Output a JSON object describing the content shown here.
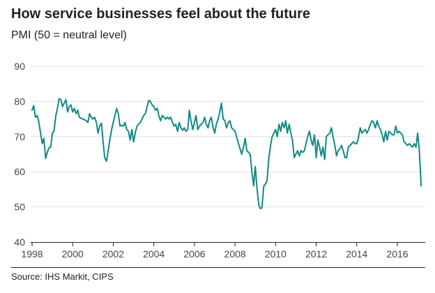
{
  "header": {
    "title": "How service businesses feel about the future",
    "subtitle": "PMI (50 = neutral level)"
  },
  "footer": {
    "source": "Source: IHS Markit, CIPS"
  },
  "colors": {
    "line": "#0f8a84",
    "grid": "#dddddd",
    "axis": "#222222",
    "text": "#444444"
  },
  "chart_data": {
    "type": "line",
    "title": "How service businesses feel about the future",
    "subtitle": "PMI (50 = neutral level)",
    "xlabel": "",
    "ylabel": "",
    "xlim": [
      1998,
      2016.9
    ],
    "ylim": [
      40,
      90
    ],
    "x_ticks": [
      1998,
      2000,
      2002,
      2004,
      2006,
      2008,
      2010,
      2012,
      2014,
      2016
    ],
    "y_ticks": [
      40,
      50,
      60,
      70,
      80,
      90
    ],
    "grid": true,
    "legend": "none",
    "series": [
      {
        "color": "#0f8a84",
        "points": [
          [
            1998.0,
            77.5
          ],
          [
            1998.08,
            78.8
          ],
          [
            1998.17,
            75.5
          ],
          [
            1998.25,
            76.0
          ],
          [
            1998.33,
            74.2
          ],
          [
            1998.42,
            71.0
          ],
          [
            1998.5,
            68.0
          ],
          [
            1998.58,
            69.5
          ],
          [
            1998.67,
            63.8
          ],
          [
            1998.75,
            65.5
          ],
          [
            1998.83,
            66.8
          ],
          [
            1998.92,
            67.0
          ],
          [
            1999.0,
            71.0
          ],
          [
            1999.08,
            71.5
          ],
          [
            1999.17,
            76.0
          ],
          [
            1999.25,
            78.0
          ],
          [
            1999.33,
            80.8
          ],
          [
            1999.42,
            80.5
          ],
          [
            1999.5,
            78.5
          ],
          [
            1999.58,
            79.5
          ],
          [
            1999.67,
            80.5
          ],
          [
            1999.75,
            77.0
          ],
          [
            1999.83,
            78.5
          ],
          [
            1999.92,
            79.0
          ],
          [
            2000.0,
            77.0
          ],
          [
            2000.08,
            78.0
          ],
          [
            2000.17,
            76.5
          ],
          [
            2000.25,
            77.5
          ],
          [
            2000.33,
            75.5
          ],
          [
            2000.42,
            75.2
          ],
          [
            2000.5,
            75.0
          ],
          [
            2000.58,
            74.8
          ],
          [
            2000.67,
            74.5
          ],
          [
            2000.75,
            74.0
          ],
          [
            2000.83,
            76.5
          ],
          [
            2000.92,
            75.5
          ],
          [
            2001.0,
            75.0
          ],
          [
            2001.08,
            75.5
          ],
          [
            2001.17,
            74.0
          ],
          [
            2001.25,
            71.0
          ],
          [
            2001.33,
            73.0
          ],
          [
            2001.42,
            73.8
          ],
          [
            2001.5,
            68.5
          ],
          [
            2001.58,
            64.0
          ],
          [
            2001.67,
            63.0
          ],
          [
            2001.75,
            66.0
          ],
          [
            2001.83,
            69.0
          ],
          [
            2001.92,
            72.0
          ],
          [
            2002.0,
            74.0
          ],
          [
            2002.08,
            76.0
          ],
          [
            2002.17,
            78.0
          ],
          [
            2002.25,
            76.5
          ],
          [
            2002.33,
            73.0
          ],
          [
            2002.42,
            73.2
          ],
          [
            2002.5,
            73.0
          ],
          [
            2002.58,
            74.0
          ],
          [
            2002.67,
            72.0
          ],
          [
            2002.75,
            71.5
          ],
          [
            2002.83,
            69.0
          ],
          [
            2002.92,
            72.0
          ],
          [
            2003.0,
            68.5
          ],
          [
            2003.08,
            71.0
          ],
          [
            2003.17,
            73.0
          ],
          [
            2003.25,
            73.5
          ],
          [
            2003.33,
            74.0
          ],
          [
            2003.42,
            75.0
          ],
          [
            2003.5,
            76.0
          ],
          [
            2003.58,
            76.5
          ],
          [
            2003.67,
            78.5
          ],
          [
            2003.75,
            80.3
          ],
          [
            2003.83,
            80.0
          ],
          [
            2003.92,
            79.0
          ],
          [
            2004.0,
            78.5
          ],
          [
            2004.08,
            77.5
          ],
          [
            2004.17,
            78.0
          ],
          [
            2004.25,
            76.0
          ],
          [
            2004.33,
            74.5
          ],
          [
            2004.42,
            76.0
          ],
          [
            2004.5,
            75.5
          ],
          [
            2004.58,
            75.0
          ],
          [
            2004.67,
            75.5
          ],
          [
            2004.75,
            75.0
          ],
          [
            2004.83,
            75.5
          ],
          [
            2004.92,
            74.0
          ],
          [
            2005.0,
            73.0
          ],
          [
            2005.08,
            73.5
          ],
          [
            2005.17,
            71.5
          ],
          [
            2005.25,
            74.0
          ],
          [
            2005.33,
            72.5
          ],
          [
            2005.42,
            71.8
          ],
          [
            2005.5,
            72.5
          ],
          [
            2005.58,
            71.5
          ],
          [
            2005.67,
            72.0
          ],
          [
            2005.75,
            77.5
          ],
          [
            2005.83,
            74.5
          ],
          [
            2005.92,
            72.0
          ],
          [
            2006.0,
            74.0
          ],
          [
            2006.08,
            76.0
          ],
          [
            2006.17,
            72.0
          ],
          [
            2006.25,
            73.0
          ],
          [
            2006.33,
            73.5
          ],
          [
            2006.42,
            74.0
          ],
          [
            2006.5,
            75.5
          ],
          [
            2006.58,
            73.5
          ],
          [
            2006.67,
            72.5
          ],
          [
            2006.75,
            74.5
          ],
          [
            2006.83,
            75.5
          ],
          [
            2006.92,
            72.5
          ],
          [
            2007.0,
            71.0
          ],
          [
            2007.08,
            73.5
          ],
          [
            2007.17,
            75.0
          ],
          [
            2007.25,
            77.0
          ],
          [
            2007.33,
            79.5
          ],
          [
            2007.42,
            75.0
          ],
          [
            2007.5,
            74.5
          ],
          [
            2007.58,
            72.5
          ],
          [
            2007.67,
            74.0
          ],
          [
            2007.75,
            74.5
          ],
          [
            2007.83,
            72.5
          ],
          [
            2007.92,
            72.0
          ],
          [
            2008.0,
            71.5
          ],
          [
            2008.08,
            70.0
          ],
          [
            2008.17,
            68.0
          ],
          [
            2008.25,
            66.5
          ],
          [
            2008.33,
            65.0
          ],
          [
            2008.42,
            67.0
          ],
          [
            2008.5,
            69.5
          ],
          [
            2008.58,
            66.0
          ],
          [
            2008.67,
            65.5
          ],
          [
            2008.75,
            65.0
          ],
          [
            2008.83,
            60.0
          ],
          [
            2008.92,
            56.0
          ],
          [
            2009.0,
            61.5
          ],
          [
            2009.08,
            55.5
          ],
          [
            2009.17,
            50.5
          ],
          [
            2009.25,
            49.5
          ],
          [
            2009.33,
            49.8
          ],
          [
            2009.42,
            56.0
          ],
          [
            2009.5,
            56.5
          ],
          [
            2009.58,
            57.5
          ],
          [
            2009.67,
            64.0
          ],
          [
            2009.75,
            67.5
          ],
          [
            2009.83,
            70.0
          ],
          [
            2009.92,
            71.0
          ],
          [
            2010.0,
            72.0
          ],
          [
            2010.08,
            70.0
          ],
          [
            2010.17,
            73.5
          ],
          [
            2010.25,
            71.5
          ],
          [
            2010.33,
            74.0
          ],
          [
            2010.42,
            72.5
          ],
          [
            2010.5,
            74.5
          ],
          [
            2010.58,
            71.0
          ],
          [
            2010.67,
            73.5
          ],
          [
            2010.75,
            71.0
          ],
          [
            2010.83,
            69.0
          ],
          [
            2010.92,
            64.0
          ],
          [
            2011.0,
            65.0
          ],
          [
            2011.08,
            66.0
          ],
          [
            2011.17,
            64.5
          ],
          [
            2011.25,
            66.0
          ],
          [
            2011.33,
            65.5
          ],
          [
            2011.42,
            66.0
          ],
          [
            2011.5,
            68.0
          ],
          [
            2011.58,
            70.0
          ],
          [
            2011.67,
            71.5
          ],
          [
            2011.75,
            69.0
          ],
          [
            2011.83,
            67.5
          ],
          [
            2011.92,
            70.5
          ],
          [
            2012.0,
            64.0
          ],
          [
            2012.08,
            69.0
          ],
          [
            2012.17,
            67.0
          ],
          [
            2012.25,
            64.5
          ],
          [
            2012.33,
            67.0
          ],
          [
            2012.42,
            63.5
          ],
          [
            2012.5,
            70.0
          ],
          [
            2012.58,
            70.5
          ],
          [
            2012.67,
            71.0
          ],
          [
            2012.75,
            72.5
          ],
          [
            2012.83,
            70.0
          ],
          [
            2012.92,
            67.5
          ],
          [
            2013.0,
            64.5
          ],
          [
            2013.08,
            66.0
          ],
          [
            2013.17,
            66.5
          ],
          [
            2013.25,
            67.5
          ],
          [
            2013.33,
            66.0
          ],
          [
            2013.42,
            64.0
          ],
          [
            2013.5,
            64.0
          ],
          [
            2013.58,
            67.0
          ],
          [
            2013.67,
            67.5
          ],
          [
            2013.75,
            68.0
          ],
          [
            2013.83,
            68.5
          ],
          [
            2013.92,
            68.0
          ],
          [
            2014.0,
            68.0
          ],
          [
            2014.08,
            69.5
          ],
          [
            2014.17,
            72.5
          ],
          [
            2014.25,
            71.0
          ],
          [
            2014.33,
            71.5
          ],
          [
            2014.42,
            72.0
          ],
          [
            2014.5,
            71.0
          ],
          [
            2014.58,
            72.0
          ],
          [
            2014.67,
            73.5
          ],
          [
            2014.75,
            74.5
          ],
          [
            2014.83,
            74.0
          ],
          [
            2014.92,
            72.5
          ],
          [
            2015.0,
            74.5
          ],
          [
            2015.08,
            73.0
          ],
          [
            2015.17,
            72.0
          ],
          [
            2015.25,
            70.5
          ],
          [
            2015.33,
            68.5
          ],
          [
            2015.42,
            71.5
          ],
          [
            2015.5,
            69.0
          ],
          [
            2015.58,
            71.5
          ],
          [
            2015.67,
            71.0
          ],
          [
            2015.75,
            70.5
          ],
          [
            2015.83,
            70.5
          ],
          [
            2015.92,
            73.0
          ],
          [
            2016.0,
            71.0
          ],
          [
            2016.08,
            71.5
          ],
          [
            2016.17,
            71.0
          ],
          [
            2016.25,
            70.5
          ],
          [
            2016.33,
            68.5
          ],
          [
            2016.42,
            68.0
          ],
          [
            2016.5,
            67.5
          ],
          [
            2016.58,
            68.0
          ],
          [
            2016.67,
            67.5
          ],
          [
            2016.75,
            67.0
          ],
          [
            2016.83,
            68.0
          ],
          [
            2016.92,
            67.0
          ],
          [
            2017.0,
            71.0
          ],
          [
            2017.08,
            66.5
          ],
          [
            2017.17,
            56.0
          ]
        ]
      }
    ]
  }
}
